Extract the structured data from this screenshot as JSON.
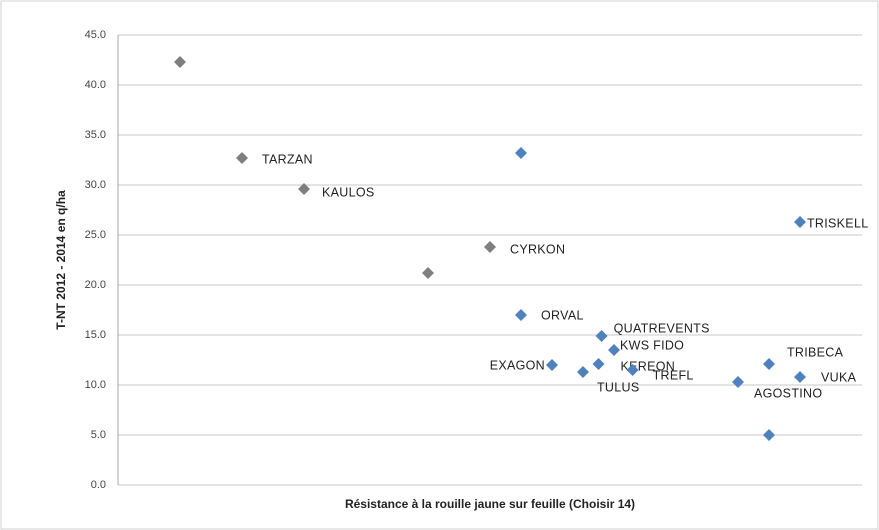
{
  "chart_data": {
    "type": "scatter",
    "xlabel": "Résistance à la rouille jaune sur feuille (Choisir 14)",
    "ylabel": "T-NT 2012 - 2014 en q/ha",
    "xlim": [
      0,
      12
    ],
    "ylim": [
      0,
      45
    ],
    "yticks": [
      {
        "value": 0,
        "label": "0.0"
      },
      {
        "value": 5,
        "label": "5.0"
      },
      {
        "value": 10,
        "label": "10.0"
      },
      {
        "value": 15,
        "label": "15.0"
      },
      {
        "value": 20,
        "label": "20.0"
      },
      {
        "value": 25,
        "label": "25.0"
      },
      {
        "value": 30,
        "label": "30.0"
      },
      {
        "value": 35,
        "label": "35.0"
      },
      {
        "value": 40,
        "label": "40.0"
      },
      {
        "value": 45,
        "label": "45.0"
      }
    ],
    "grid": true,
    "series": [
      {
        "color": "#7f7f7f",
        "x": [
          1,
          2,
          3,
          5,
          6
        ],
        "values": [
          42.3,
          32.7,
          29.6,
          21.2,
          23.8
        ],
        "labels": [
          null,
          "TARZAN",
          "KAULOS",
          null,
          "CYRKON"
        ]
      },
      {
        "color": "#4f81bd",
        "x": [
          6.5,
          6.5,
          7,
          7.5,
          7.75,
          7.8,
          8,
          8.3,
          10,
          10.5,
          10.5,
          11,
          11
        ],
        "values": [
          33.2,
          17.0,
          12.0,
          11.3,
          12.1,
          14.9,
          13.5,
          11.5,
          10.3,
          12.1,
          5.0,
          26.3,
          10.8
        ],
        "labels": [
          null,
          "ORVAL",
          "EXAGON",
          "TULUS",
          "KEREON",
          "QUATREVENTS",
          "KWS FIDO",
          "TREFL",
          "AGOSTINO",
          "TRIBECA",
          null,
          "TRISKELL",
          "VUKA"
        ]
      }
    ]
  }
}
